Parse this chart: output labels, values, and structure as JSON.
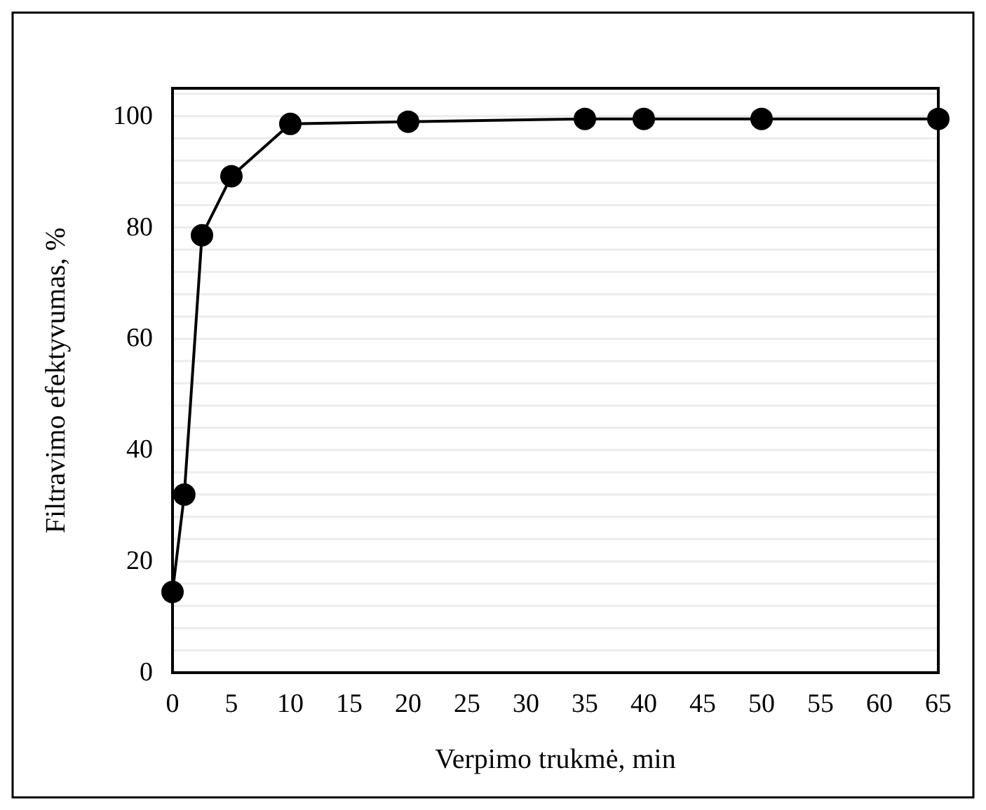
{
  "chart_data": {
    "type": "line",
    "xlabel": "Verpimo trukmė, min",
    "ylabel": "Filtravimo efektyvumas, %",
    "x": [
      0,
      1,
      2.5,
      5,
      10,
      20,
      35,
      40,
      50,
      65
    ],
    "series": [
      {
        "color": "#000000",
        "values": [
          14.5,
          32,
          78.6,
          89.2,
          98.6,
          99,
          99.5,
          99.5,
          99.5,
          99.5
        ]
      }
    ],
    "marker": "circle",
    "line_style": "solid",
    "grid": "y",
    "xlim": [
      0,
      65
    ],
    "xticks": [
      0,
      5,
      10,
      15,
      20,
      25,
      30,
      35,
      40,
      45,
      50,
      55,
      60,
      65
    ],
    "ylim": [
      0,
      105
    ],
    "yticks": [
      0,
      {
        "value": 4,
        "label": null
      },
      {
        "value": 8,
        "label": null
      },
      {
        "value": 12,
        "label": null
      },
      {
        "value": 16,
        "label": null
      },
      20,
      {
        "value": 24,
        "label": null
      },
      {
        "value": 28,
        "label": null
      },
      {
        "value": 32,
        "label": null
      },
      {
        "value": 36,
        "label": null
      },
      40,
      {
        "value": 44,
        "label": null
      },
      {
        "value": 48,
        "label": null
      },
      {
        "value": 52,
        "label": null
      },
      {
        "value": 56,
        "label": null
      },
      60,
      {
        "value": 64,
        "label": null
      },
      {
        "value": 68,
        "label": null
      },
      {
        "value": 72,
        "label": null
      },
      {
        "value": 76,
        "label": null
      },
      80,
      {
        "value": 84,
        "label": null
      },
      {
        "value": 88,
        "label": null
      },
      {
        "value": 92,
        "label": null
      },
      {
        "value": 96,
        "label": null
      },
      100,
      {
        "value": 104,
        "label": null
      }
    ]
  }
}
